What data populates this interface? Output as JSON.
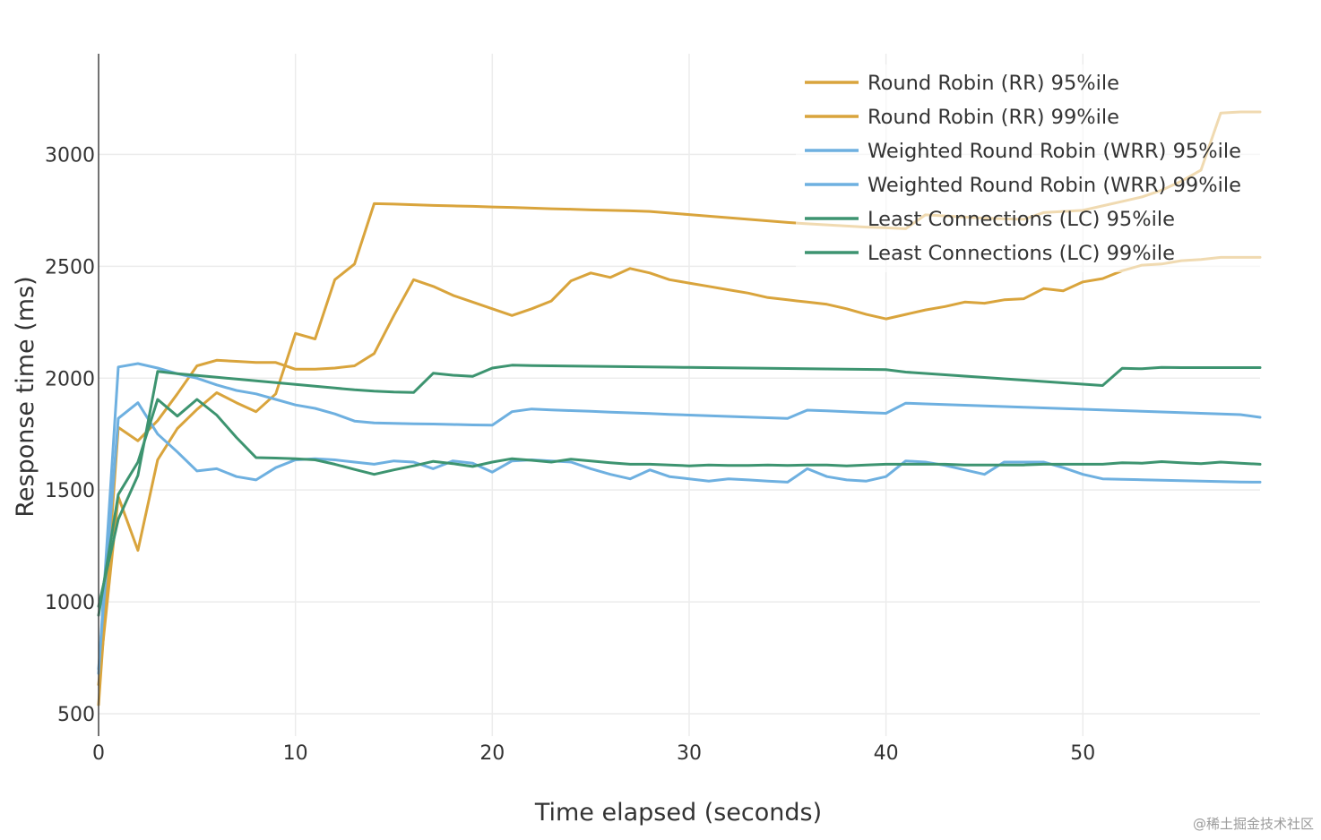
{
  "chart_data": {
    "type": "line",
    "title": "",
    "xlabel": "Time elapsed (seconds)",
    "ylabel": "Response time (ms)",
    "xlim": [
      0,
      59
    ],
    "ylim": [
      400,
      3450
    ],
    "xticks": [
      0,
      10,
      20,
      30,
      40,
      50
    ],
    "yticks": [
      500,
      1000,
      1500,
      2000,
      2500,
      3000
    ],
    "grid": true,
    "legend_position": "top-right",
    "series": [
      {
        "name": "Round Robin (RR) 95%ile",
        "color": "#d9a43c",
        "x": [
          0,
          1,
          2,
          3,
          4,
          5,
          6,
          7,
          8,
          9,
          10,
          11,
          12,
          13,
          14,
          15,
          16,
          17,
          18,
          19,
          20,
          21,
          22,
          23,
          24,
          25,
          26,
          27,
          28,
          29,
          30,
          31,
          32,
          33,
          34,
          35,
          36,
          37,
          38,
          39,
          40,
          41,
          42,
          43,
          44,
          45,
          46,
          47,
          48,
          49,
          50,
          51,
          52,
          53,
          54,
          55,
          56,
          57,
          58,
          59
        ],
        "values": [
          540,
          1780,
          1720,
          1810,
          1930,
          2055,
          2080,
          2075,
          2070,
          2070,
          2040,
          2040,
          2045,
          2055,
          2110,
          2280,
          2440,
          2410,
          2370,
          2340,
          2310,
          2280,
          2310,
          2345,
          2435,
          2470,
          2450,
          2490,
          2470,
          2440,
          2425,
          2410,
          2395,
          2380,
          2360,
          2350,
          2340,
          2330,
          2310,
          2285,
          2265,
          2285,
          2305,
          2320,
          2340,
          2335,
          2350,
          2355,
          2400,
          2390,
          2430,
          2445,
          2480,
          2505,
          2510,
          2525,
          2530,
          2540,
          2540,
          2540
        ]
      },
      {
        "name": "Round Robin (RR) 99%ile",
        "color": "#d9a43c",
        "x": [
          0,
          1,
          2,
          3,
          4,
          5,
          6,
          7,
          8,
          9,
          10,
          11,
          12,
          13,
          14,
          15,
          16,
          17,
          18,
          19,
          20,
          21,
          22,
          23,
          24,
          25,
          26,
          27,
          28,
          29,
          30,
          31,
          32,
          33,
          34,
          35,
          36,
          37,
          38,
          39,
          40,
          41,
          42,
          43,
          44,
          45,
          46,
          47,
          48,
          49,
          50,
          51,
          52,
          53,
          54,
          55,
          56,
          57,
          58,
          59
        ],
        "values": [
          630,
          1470,
          1230,
          1635,
          1775,
          1860,
          1935,
          1890,
          1850,
          1930,
          2200,
          2175,
          2440,
          2510,
          2780,
          2778,
          2775,
          2772,
          2770,
          2768,
          2765,
          2763,
          2760,
          2757,
          2755,
          2752,
          2750,
          2748,
          2745,
          2738,
          2731,
          2724,
          2717,
          2710,
          2703,
          2696,
          2690,
          2685,
          2680,
          2675,
          2672,
          2668,
          2730,
          2725,
          2720,
          2715,
          2712,
          2710,
          2740,
          2745,
          2750,
          2770,
          2790,
          2810,
          2840,
          2880,
          2930,
          3185,
          3190,
          3190
        ]
      },
      {
        "name": "Weighted Round Robin (WRR) 95%ile",
        "color": "#6eb0e0",
        "x": [
          0,
          1,
          2,
          3,
          4,
          5,
          6,
          7,
          8,
          9,
          10,
          11,
          12,
          13,
          14,
          15,
          16,
          17,
          18,
          19,
          20,
          21,
          22,
          23,
          24,
          25,
          26,
          27,
          28,
          29,
          30,
          31,
          32,
          33,
          34,
          35,
          36,
          37,
          38,
          39,
          40,
          41,
          42,
          43,
          44,
          45,
          46,
          47,
          48,
          49,
          50,
          51,
          52,
          53,
          54,
          55,
          56,
          57,
          58,
          59
        ],
        "values": [
          680,
          2050,
          2065,
          2045,
          2020,
          2000,
          1970,
          1945,
          1930,
          1905,
          1880,
          1865,
          1840,
          1808,
          1800,
          1798,
          1796,
          1795,
          1793,
          1791,
          1790,
          1850,
          1862,
          1858,
          1855,
          1852,
          1848,
          1845,
          1842,
          1838,
          1835,
          1832,
          1829,
          1826,
          1823,
          1820,
          1857,
          1854,
          1850,
          1846,
          1843,
          1888,
          1885,
          1882,
          1879,
          1876,
          1873,
          1870,
          1867,
          1864,
          1861,
          1858,
          1855,
          1852,
          1849,
          1846,
          1843,
          1840,
          1837,
          1825
        ]
      },
      {
        "name": "Weighted Round Robin (WRR) 99%ile",
        "color": "#6eb0e0",
        "x": [
          0,
          1,
          2,
          3,
          4,
          5,
          6,
          7,
          8,
          9,
          10,
          11,
          12,
          13,
          14,
          15,
          16,
          17,
          18,
          19,
          20,
          21,
          22,
          23,
          24,
          25,
          26,
          27,
          28,
          29,
          30,
          31,
          32,
          33,
          34,
          35,
          36,
          37,
          38,
          39,
          40,
          41,
          42,
          43,
          44,
          45,
          46,
          47,
          48,
          49,
          50,
          51,
          52,
          53,
          54,
          55,
          56,
          57,
          58,
          59
        ],
        "values": [
          700,
          1820,
          1890,
          1750,
          1670,
          1585,
          1595,
          1560,
          1545,
          1600,
          1635,
          1640,
          1635,
          1625,
          1615,
          1630,
          1625,
          1595,
          1630,
          1620,
          1580,
          1630,
          1635,
          1630,
          1625,
          1595,
          1570,
          1550,
          1590,
          1560,
          1550,
          1540,
          1550,
          1545,
          1540,
          1535,
          1595,
          1560,
          1545,
          1540,
          1560,
          1630,
          1625,
          1610,
          1590,
          1570,
          1625,
          1625,
          1625,
          1600,
          1570,
          1550,
          1548,
          1546,
          1544,
          1542,
          1540,
          1538,
          1536,
          1535
        ]
      },
      {
        "name": "Least Connections (LC) 95%ile",
        "color": "#3d9470",
        "x": [
          0,
          1,
          2,
          3,
          4,
          5,
          6,
          7,
          8,
          9,
          10,
          11,
          12,
          13,
          14,
          15,
          16,
          17,
          18,
          19,
          20,
          21,
          22,
          23,
          24,
          25,
          26,
          27,
          28,
          29,
          30,
          31,
          32,
          33,
          34,
          35,
          36,
          37,
          38,
          39,
          40,
          41,
          42,
          43,
          44,
          45,
          46,
          47,
          48,
          49,
          50,
          51,
          52,
          53,
          54,
          55,
          56,
          57,
          58,
          59
        ],
        "values": [
          980,
          1370,
          1565,
          2030,
          2020,
          2012,
          2004,
          1996,
          1988,
          1980,
          1972,
          1964,
          1956,
          1948,
          1942,
          1938,
          1936,
          2022,
          2013,
          2008,
          2045,
          2058,
          2056,
          2055,
          2054,
          2053,
          2052,
          2051,
          2050,
          2049,
          2048,
          2047,
          2046,
          2045,
          2044,
          2043,
          2042,
          2041,
          2040,
          2039,
          2038,
          2027,
          2021,
          2015,
          2009,
          2003,
          1997,
          1991,
          1985,
          1979,
          1973,
          1967,
          2044,
          2042,
          2048,
          2047,
          2047,
          2047,
          2047,
          2047
        ]
      },
      {
        "name": "Least Connections (LC) 99%ile",
        "color": "#3d9470",
        "x": [
          0,
          1,
          2,
          3,
          4,
          5,
          6,
          7,
          8,
          9,
          10,
          11,
          12,
          13,
          14,
          15,
          16,
          17,
          18,
          19,
          20,
          21,
          22,
          23,
          24,
          25,
          26,
          27,
          28,
          29,
          30,
          31,
          32,
          33,
          34,
          35,
          36,
          37,
          38,
          39,
          40,
          41,
          42,
          43,
          44,
          45,
          46,
          47,
          48,
          49,
          50,
          51,
          52,
          53,
          54,
          55,
          56,
          57,
          58,
          59
        ],
        "values": [
          940,
          1480,
          1625,
          1905,
          1830,
          1905,
          1835,
          1735,
          1645,
          1643,
          1640,
          1635,
          1615,
          1592,
          1570,
          1590,
          1608,
          1628,
          1618,
          1605,
          1625,
          1640,
          1633,
          1625,
          1638,
          1630,
          1622,
          1615,
          1615,
          1612,
          1608,
          1612,
          1610,
          1610,
          1612,
          1610,
          1612,
          1612,
          1608,
          1612,
          1615,
          1615,
          1615,
          1615,
          1612,
          1612,
          1612,
          1612,
          1615,
          1615,
          1615,
          1615,
          1622,
          1620,
          1627,
          1622,
          1618,
          1625,
          1620,
          1615
        ]
      }
    ]
  },
  "watermark": "@稀土掘金技术社区"
}
